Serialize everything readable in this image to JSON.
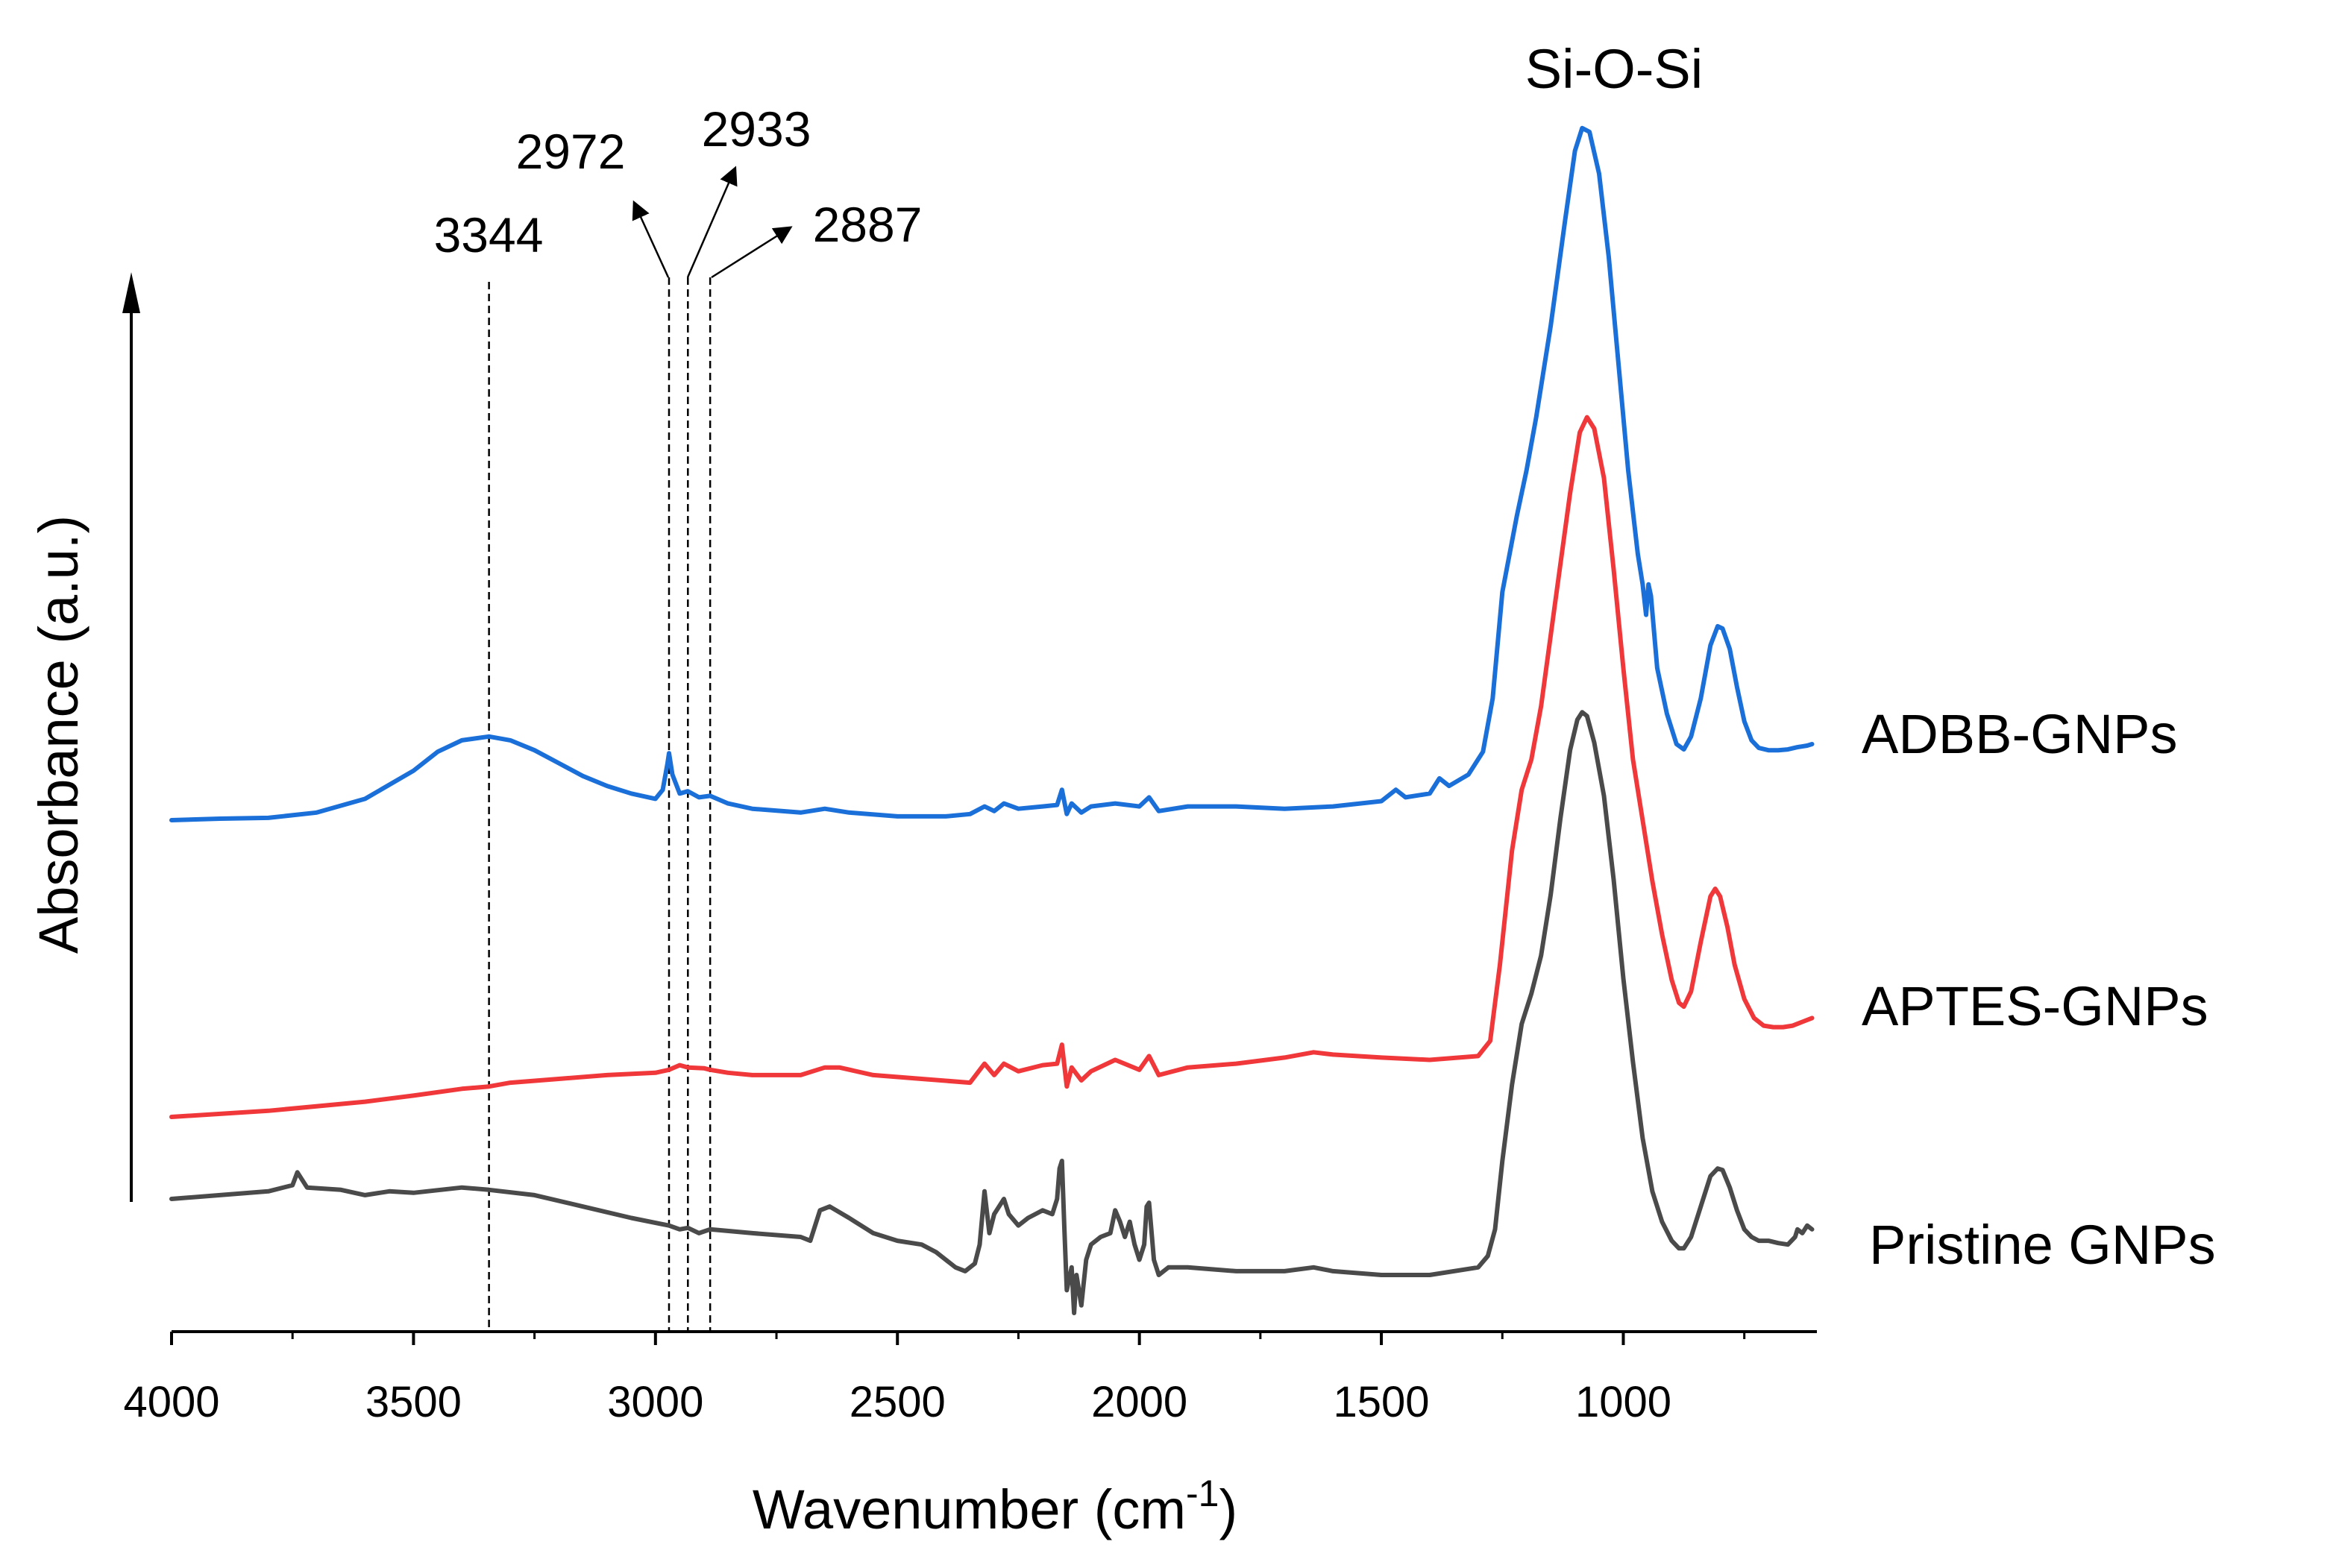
{
  "chart_data": {
    "type": "line",
    "title": "",
    "xlabel_main": "Wavenumber (cm",
    "xlabel_sup": "-1",
    "xlabel_end": ")",
    "ylabel": "Absorbance (a.u.)",
    "xlim": [
      4000,
      600
    ],
    "x_reversed": true,
    "xticks": [
      4000,
      3500,
      3000,
      2500,
      2000,
      1500,
      1000
    ],
    "xtick_labels": [
      "4000",
      "3500",
      "3000",
      "2500",
      "2000",
      "1500",
      "1000"
    ],
    "yticks": "none",
    "grid": false,
    "series": [
      {
        "name": "ADBB-GNPs",
        "color": "#1a6fd9",
        "points": [
          [
            4000,
            0.0
          ],
          [
            3900,
            0.002
          ],
          [
            3800,
            0.003
          ],
          [
            3700,
            0.01
          ],
          [
            3600,
            0.028
          ],
          [
            3500,
            0.065
          ],
          [
            3450,
            0.09
          ],
          [
            3400,
            0.105
          ],
          [
            3344,
            0.11
          ],
          [
            3300,
            0.105
          ],
          [
            3250,
            0.092
          ],
          [
            3200,
            0.075
          ],
          [
            3150,
            0.058
          ],
          [
            3100,
            0.045
          ],
          [
            3050,
            0.035
          ],
          [
            3000,
            0.028
          ],
          [
            2985,
            0.04
          ],
          [
            2975,
            0.075
          ],
          [
            2972,
            0.088
          ],
          [
            2965,
            0.06
          ],
          [
            2950,
            0.035
          ],
          [
            2933,
            0.038
          ],
          [
            2910,
            0.03
          ],
          [
            2887,
            0.032
          ],
          [
            2850,
            0.022
          ],
          [
            2800,
            0.015
          ],
          [
            2700,
            0.01
          ],
          [
            2650,
            0.015
          ],
          [
            2600,
            0.01
          ],
          [
            2500,
            0.005
          ],
          [
            2400,
            0.005
          ],
          [
            2350,
            0.008
          ],
          [
            2320,
            0.018
          ],
          [
            2300,
            0.012
          ],
          [
            2280,
            0.022
          ],
          [
            2250,
            0.015
          ],
          [
            2200,
            0.018
          ],
          [
            2170,
            0.02
          ],
          [
            2160,
            0.04
          ],
          [
            2150,
            0.008
          ],
          [
            2140,
            0.022
          ],
          [
            2120,
            0.01
          ],
          [
            2100,
            0.018
          ],
          [
            2050,
            0.022
          ],
          [
            2000,
            0.018
          ],
          [
            1980,
            0.03
          ],
          [
            1960,
            0.012
          ],
          [
            1900,
            0.018
          ],
          [
            1800,
            0.018
          ],
          [
            1700,
            0.015
          ],
          [
            1600,
            0.018
          ],
          [
            1500,
            0.025
          ],
          [
            1470,
            0.04
          ],
          [
            1450,
            0.03
          ],
          [
            1400,
            0.035
          ],
          [
            1380,
            0.055
          ],
          [
            1360,
            0.045
          ],
          [
            1320,
            0.06
          ],
          [
            1290,
            0.09
          ],
          [
            1270,
            0.16
          ],
          [
            1250,
            0.3
          ],
          [
            1220,
            0.4
          ],
          [
            1200,
            0.46
          ],
          [
            1180,
            0.53
          ],
          [
            1150,
            0.65
          ],
          [
            1120,
            0.79
          ],
          [
            1100,
            0.88
          ],
          [
            1085,
            0.91
          ],
          [
            1070,
            0.905
          ],
          [
            1050,
            0.85
          ],
          [
            1030,
            0.74
          ],
          [
            1010,
            0.6
          ],
          [
            990,
            0.46
          ],
          [
            970,
            0.35
          ],
          [
            960,
            0.31
          ],
          [
            953,
            0.27
          ],
          [
            948,
            0.31
          ],
          [
            943,
            0.295
          ],
          [
            930,
            0.2
          ],
          [
            910,
            0.14
          ],
          [
            890,
            0.1
          ],
          [
            875,
            0.093
          ],
          [
            860,
            0.11
          ],
          [
            840,
            0.16
          ],
          [
            820,
            0.23
          ],
          [
            805,
            0.255
          ],
          [
            795,
            0.252
          ],
          [
            780,
            0.225
          ],
          [
            765,
            0.175
          ],
          [
            750,
            0.13
          ],
          [
            735,
            0.105
          ],
          [
            720,
            0.095
          ],
          [
            700,
            0.092
          ],
          [
            680,
            0.092
          ],
          [
            660,
            0.093
          ],
          [
            640,
            0.096
          ],
          [
            620,
            0.098
          ],
          [
            610,
            0.1
          ]
        ]
      },
      {
        "name": "APTES-GNPs",
        "color": "#f0373a",
        "points": [
          [
            4000,
            0.0
          ],
          [
            3800,
            0.008
          ],
          [
            3600,
            0.02
          ],
          [
            3500,
            0.028
          ],
          [
            3400,
            0.037
          ],
          [
            3344,
            0.04
          ],
          [
            3300,
            0.045
          ],
          [
            3200,
            0.05
          ],
          [
            3100,
            0.055
          ],
          [
            3000,
            0.058
          ],
          [
            2972,
            0.062
          ],
          [
            2950,
            0.068
          ],
          [
            2933,
            0.065
          ],
          [
            2900,
            0.064
          ],
          [
            2887,
            0.062
          ],
          [
            2850,
            0.058
          ],
          [
            2800,
            0.055
          ],
          [
            2700,
            0.055
          ],
          [
            2650,
            0.065
          ],
          [
            2620,
            0.065
          ],
          [
            2550,
            0.055
          ],
          [
            2450,
            0.05
          ],
          [
            2350,
            0.045
          ],
          [
            2320,
            0.07
          ],
          [
            2300,
            0.055
          ],
          [
            2280,
            0.07
          ],
          [
            2250,
            0.06
          ],
          [
            2200,
            0.068
          ],
          [
            2170,
            0.07
          ],
          [
            2160,
            0.095
          ],
          [
            2150,
            0.04
          ],
          [
            2140,
            0.065
          ],
          [
            2120,
            0.048
          ],
          [
            2100,
            0.06
          ],
          [
            2050,
            0.075
          ],
          [
            2000,
            0.062
          ],
          [
            1980,
            0.08
          ],
          [
            1960,
            0.055
          ],
          [
            1900,
            0.065
          ],
          [
            1800,
            0.07
          ],
          [
            1700,
            0.078
          ],
          [
            1640,
            0.085
          ],
          [
            1600,
            0.082
          ],
          [
            1500,
            0.078
          ],
          [
            1400,
            0.075
          ],
          [
            1300,
            0.08
          ],
          [
            1275,
            0.1
          ],
          [
            1255,
            0.2
          ],
          [
            1230,
            0.35
          ],
          [
            1210,
            0.43
          ],
          [
            1190,
            0.47
          ],
          [
            1170,
            0.54
          ],
          [
            1140,
            0.68
          ],
          [
            1110,
            0.82
          ],
          [
            1090,
            0.9
          ],
          [
            1075,
            0.92
          ],
          [
            1060,
            0.905
          ],
          [
            1040,
            0.84
          ],
          [
            1020,
            0.72
          ],
          [
            1000,
            0.59
          ],
          [
            980,
            0.47
          ],
          [
            960,
            0.39
          ],
          [
            940,
            0.31
          ],
          [
            920,
            0.24
          ],
          [
            900,
            0.18
          ],
          [
            885,
            0.15
          ],
          [
            875,
            0.145
          ],
          [
            860,
            0.165
          ],
          [
            840,
            0.23
          ],
          [
            820,
            0.29
          ],
          [
            810,
            0.3
          ],
          [
            800,
            0.29
          ],
          [
            785,
            0.25
          ],
          [
            770,
            0.2
          ],
          [
            750,
            0.155
          ],
          [
            730,
            0.13
          ],
          [
            710,
            0.12
          ],
          [
            690,
            0.118
          ],
          [
            670,
            0.118
          ],
          [
            650,
            0.12
          ],
          [
            630,
            0.125
          ],
          [
            610,
            0.13
          ]
        ]
      },
      {
        "name": "Pristine GNPs",
        "color": "#4a4a4a",
        "points": [
          [
            4000,
            0.0
          ],
          [
            3900,
            0.005
          ],
          [
            3800,
            0.01
          ],
          [
            3750,
            0.018
          ],
          [
            3740,
            0.035
          ],
          [
            3720,
            0.015
          ],
          [
            3650,
            0.012
          ],
          [
            3600,
            0.005
          ],
          [
            3550,
            0.01
          ],
          [
            3500,
            0.008
          ],
          [
            3400,
            0.015
          ],
          [
            3344,
            0.012
          ],
          [
            3250,
            0.005
          ],
          [
            3150,
            -0.01
          ],
          [
            3050,
            -0.025
          ],
          [
            2972,
            -0.035
          ],
          [
            2950,
            -0.04
          ],
          [
            2933,
            -0.038
          ],
          [
            2910,
            -0.045
          ],
          [
            2887,
            -0.04
          ],
          [
            2800,
            -0.045
          ],
          [
            2700,
            -0.05
          ],
          [
            2680,
            -0.055
          ],
          [
            2670,
            -0.035
          ],
          [
            2660,
            -0.015
          ],
          [
            2640,
            -0.01
          ],
          [
            2600,
            -0.025
          ],
          [
            2550,
            -0.045
          ],
          [
            2500,
            -0.055
          ],
          [
            2450,
            -0.06
          ],
          [
            2420,
            -0.07
          ],
          [
            2400,
            -0.08
          ],
          [
            2380,
            -0.09
          ],
          [
            2360,
            -0.095
          ],
          [
            2340,
            -0.085
          ],
          [
            2330,
            -0.06
          ],
          [
            2320,
            0.01
          ],
          [
            2310,
            -0.045
          ],
          [
            2300,
            -0.02
          ],
          [
            2290,
            -0.01
          ],
          [
            2280,
            0.0
          ],
          [
            2270,
            -0.02
          ],
          [
            2250,
            -0.035
          ],
          [
            2230,
            -0.025
          ],
          [
            2200,
            -0.015
          ],
          [
            2180,
            -0.02
          ],
          [
            2170,
            0.0
          ],
          [
            2165,
            0.04
          ],
          [
            2160,
            0.05
          ],
          [
            2155,
            -0.04
          ],
          [
            2150,
            -0.12
          ],
          [
            2140,
            -0.09
          ],
          [
            2135,
            -0.15
          ],
          [
            2130,
            -0.1
          ],
          [
            2120,
            -0.14
          ],
          [
            2110,
            -0.08
          ],
          [
            2100,
            -0.06
          ],
          [
            2080,
            -0.05
          ],
          [
            2060,
            -0.045
          ],
          [
            2050,
            -0.015
          ],
          [
            2040,
            -0.03
          ],
          [
            2030,
            -0.05
          ],
          [
            2020,
            -0.03
          ],
          [
            2010,
            -0.06
          ],
          [
            2000,
            -0.08
          ],
          [
            1990,
            -0.06
          ],
          [
            1985,
            -0.01
          ],
          [
            1980,
            -0.005
          ],
          [
            1970,
            -0.08
          ],
          [
            1960,
            -0.1
          ],
          [
            1940,
            -0.09
          ],
          [
            1900,
            -0.09
          ],
          [
            1800,
            -0.095
          ],
          [
            1700,
            -0.095
          ],
          [
            1640,
            -0.09
          ],
          [
            1600,
            -0.095
          ],
          [
            1500,
            -0.1
          ],
          [
            1400,
            -0.1
          ],
          [
            1300,
            -0.09
          ],
          [
            1280,
            -0.075
          ],
          [
            1265,
            -0.04
          ],
          [
            1250,
            0.05
          ],
          [
            1230,
            0.15
          ],
          [
            1210,
            0.23
          ],
          [
            1190,
            0.27
          ],
          [
            1170,
            0.32
          ],
          [
            1150,
            0.4
          ],
          [
            1130,
            0.5
          ],
          [
            1110,
            0.59
          ],
          [
            1095,
            0.63
          ],
          [
            1085,
            0.64
          ],
          [
            1075,
            0.635
          ],
          [
            1060,
            0.6
          ],
          [
            1040,
            0.53
          ],
          [
            1020,
            0.42
          ],
          [
            1000,
            0.29
          ],
          [
            980,
            0.18
          ],
          [
            960,
            0.08
          ],
          [
            940,
            0.01
          ],
          [
            920,
            -0.03
          ],
          [
            900,
            -0.055
          ],
          [
            885,
            -0.065
          ],
          [
            875,
            -0.065
          ],
          [
            860,
            -0.05
          ],
          [
            840,
            -0.01
          ],
          [
            820,
            0.03
          ],
          [
            805,
            0.04
          ],
          [
            795,
            0.038
          ],
          [
            780,
            0.015
          ],
          [
            765,
            -0.015
          ],
          [
            750,
            -0.04
          ],
          [
            735,
            -0.05
          ],
          [
            720,
            -0.055
          ],
          [
            700,
            -0.055
          ],
          [
            680,
            -0.058
          ],
          [
            660,
            -0.06
          ],
          [
            645,
            -0.05
          ],
          [
            640,
            -0.04
          ],
          [
            630,
            -0.045
          ],
          [
            620,
            -0.035
          ],
          [
            610,
            -0.04
          ]
        ]
      }
    ],
    "annotations": {
      "vertical_markers": [
        3344,
        2972,
        2933,
        2887
      ],
      "marker_labels": [
        "3344",
        "2972",
        "2933",
        "2887"
      ],
      "peak_label": "Si-O-Si",
      "peak_at": 1075
    },
    "legend": [
      "ADBB-GNPs",
      "APTES-GNPs",
      "Pristine GNPs"
    ]
  }
}
